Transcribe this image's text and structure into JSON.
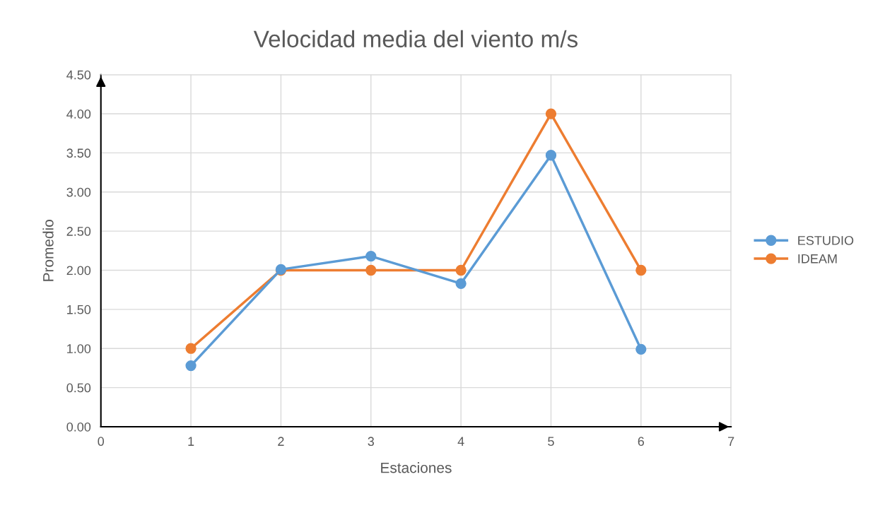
{
  "chart_data": {
    "type": "line",
    "title": "Velocidad media del viento m/s",
    "xlabel": "Estaciones",
    "ylabel": "Promedio",
    "x": [
      1,
      2,
      3,
      4,
      5,
      6
    ],
    "series": [
      {
        "name": "ESTUDIO",
        "color": "#5b9bd5",
        "values": [
          0.78,
          2.01,
          2.18,
          1.83,
          3.47,
          0.99
        ]
      },
      {
        "name": "IDEAM",
        "color": "#ed7d31",
        "values": [
          1.0,
          2.0,
          2.0,
          2.0,
          4.0,
          2.0
        ]
      }
    ],
    "xlim": [
      0,
      7
    ],
    "xticks": [
      0,
      1,
      2,
      3,
      4,
      5,
      6,
      7
    ],
    "ylim": [
      0,
      4.5
    ],
    "yticks": [
      {
        "value": 0,
        "label": "0.00"
      },
      {
        "value": 0.5,
        "label": "0.50"
      },
      {
        "value": 1,
        "label": "1.00"
      },
      {
        "value": 1.5,
        "label": "1.50"
      },
      {
        "value": 2,
        "label": "2.00"
      },
      {
        "value": 2.5,
        "label": "2.50"
      },
      {
        "value": 3,
        "label": "3.00"
      },
      {
        "value": 3.5,
        "label": "3.50"
      },
      {
        "value": 4,
        "label": "4.00"
      },
      {
        "value": 4.5,
        "label": "4.50"
      }
    ],
    "grid": true,
    "legend": "right",
    "marker": "circle",
    "line_style": "solid"
  }
}
